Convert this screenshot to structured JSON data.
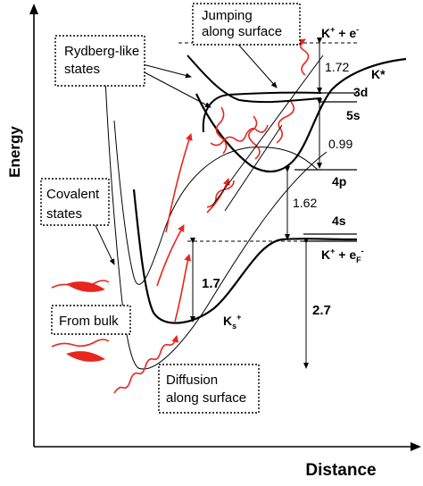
{
  "axes": {
    "x_label": "Distance",
    "y_label": "Energy"
  },
  "boxes": {
    "jumping": [
      "Jumping",
      "along surface"
    ],
    "rydberg": [
      "Rydberg-like",
      "states"
    ],
    "covalent": [
      "Covalent",
      "states"
    ],
    "from_bulk": "From bulk",
    "diffusion": [
      "Diffusion",
      "along surface"
    ]
  },
  "levels": {
    "k_plus_e_top": {
      "base": "K",
      "sup": "+",
      "mid": " + e",
      "sup2": "-"
    },
    "k_star": {
      "base": "K*"
    },
    "l3d": "3d",
    "l5s": "5s",
    "l4p": "4p",
    "l4s": "4s",
    "k_plus_ef": {
      "base": "K",
      "sup": "+",
      "mid": " + e",
      "sub": "F",
      "sup2": "-"
    },
    "ks_plus": {
      "base": "K",
      "sub": "s",
      "sup": "+"
    }
  },
  "energies": {
    "e172": "1.72",
    "e099": "0.99",
    "e162": "1.62",
    "e17": "1.7",
    "e27": "2.7"
  },
  "colors": {
    "curve": "#000000",
    "excitation": "#e8261e"
  }
}
